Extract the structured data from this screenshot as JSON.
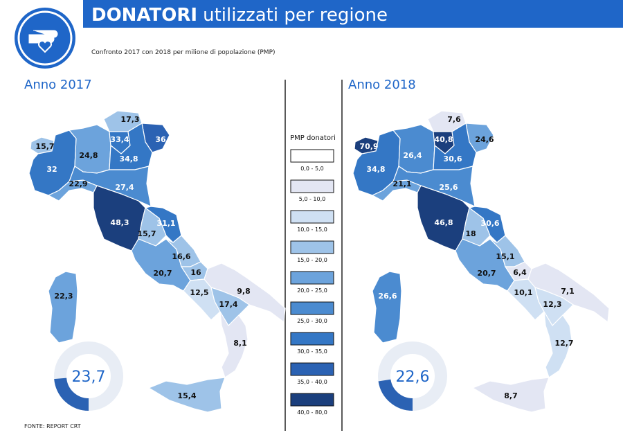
{
  "header": {
    "title_bold": "DONATORI",
    "title_rest": "utilizzati per regione",
    "subtitle": "Confronto 2017 con 2018 per milione di popolazione (PMP)"
  },
  "maps": [
    {
      "title": "Anno 2017",
      "donut": {
        "value": 23.7,
        "label": "23,7"
      },
      "regions": [
        {
          "label": "15,7",
          "color": "#9ec3e8"
        },
        {
          "label": "32",
          "color": "#3477c5"
        },
        {
          "label": "24,8",
          "color": "#6ca3dc"
        },
        {
          "label": "17,3",
          "color": "#9ec3e8"
        },
        {
          "label": "33,4",
          "color": "#3477c5"
        },
        {
          "label": "36",
          "color": "#2b62b3"
        },
        {
          "label": "34,8",
          "color": "#3477c5"
        },
        {
          "label": "22,9",
          "color": "#6ca3dc"
        },
        {
          "label": "27,4",
          "color": "#4b8bd0"
        },
        {
          "label": "48,3",
          "color": "#1b3f7d"
        },
        {
          "label": "15,7",
          "color": "#9ec3e8"
        },
        {
          "label": "31,1",
          "color": "#3477c5"
        },
        {
          "label": "20,7",
          "color": "#6ca3dc"
        },
        {
          "label": "16,6",
          "color": "#9ec3e8"
        },
        {
          "label": "16",
          "color": "#9ec3e8"
        },
        {
          "label": "12,5",
          "color": "#cfe0f3"
        },
        {
          "label": "9,8",
          "color": "#e3e6f3"
        },
        {
          "label": "17,4",
          "color": "#9ec3e8"
        },
        {
          "label": "8,1",
          "color": "#e3e6f3"
        },
        {
          "label": "15,4",
          "color": "#9ec3e8"
        },
        {
          "label": "22,3",
          "color": "#6ca3dc"
        }
      ]
    },
    {
      "title": "Anno 2018",
      "donut": {
        "value": 22.6,
        "label": "22,6"
      },
      "regions": [
        {
          "label": "70,9",
          "color": "#1b3f7d"
        },
        {
          "label": "34,8",
          "color": "#3477c5"
        },
        {
          "label": "26,4",
          "color": "#4b8bd0"
        },
        {
          "label": "7,6",
          "color": "#e3e6f3"
        },
        {
          "label": "40,8",
          "color": "#1b3f7d"
        },
        {
          "label": "24,6",
          "color": "#6ca3dc"
        },
        {
          "label": "30,6",
          "color": "#3477c5"
        },
        {
          "label": "21,1",
          "color": "#6ca3dc"
        },
        {
          "label": "25,6",
          "color": "#4b8bd0"
        },
        {
          "label": "46,8",
          "color": "#1b3f7d"
        },
        {
          "label": "18",
          "color": "#9ec3e8"
        },
        {
          "label": "30,6",
          "color": "#3477c5"
        },
        {
          "label": "20,7",
          "color": "#6ca3dc"
        },
        {
          "label": "15,1",
          "color": "#9ec3e8"
        },
        {
          "label": "6,4",
          "color": "#e3e6f3"
        },
        {
          "label": "10,1",
          "color": "#cfe0f3"
        },
        {
          "label": "7,1",
          "color": "#e3e6f3"
        },
        {
          "label": "12,3",
          "color": "#cfe0f3"
        },
        {
          "label": "12,7",
          "color": "#cfe0f3"
        },
        {
          "label": "8,7",
          "color": "#e3e6f3"
        },
        {
          "label": "26,6",
          "color": "#4b8bd0"
        }
      ]
    }
  ],
  "legend": {
    "title": "PMP donatori",
    "items": [
      {
        "label": "0,0 - 5,0",
        "color": "#ffffff"
      },
      {
        "label": "5,0 - 10,0",
        "color": "#e3e6f3"
      },
      {
        "label": "10,0 - 15,0",
        "color": "#cfe0f3"
      },
      {
        "label": "15,0 - 20,0",
        "color": "#9ec3e8"
      },
      {
        "label": "20,0 - 25,0",
        "color": "#6ca3dc"
      },
      {
        "label": "25,0 - 30,0",
        "color": "#4b8bd0"
      },
      {
        "label": "30,0 - 35,0",
        "color": "#3477c5"
      },
      {
        "label": "35,0 - 40,0",
        "color": "#2b62b3"
      },
      {
        "label": "40,0 - 80,0",
        "color": "#1b3f7d"
      }
    ]
  },
  "source": "FONTE: REPORT CRT"
}
